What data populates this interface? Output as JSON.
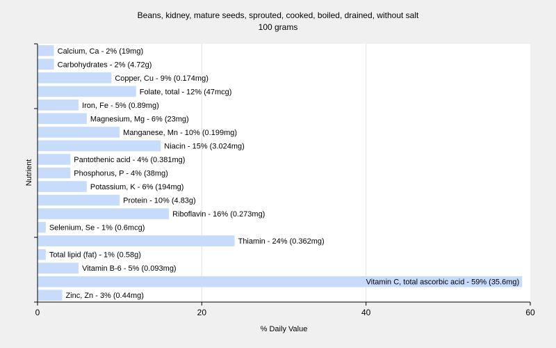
{
  "chart_data": {
    "type": "bar",
    "orientation": "horizontal",
    "title": "Beans, kidney, mature seeds, sprouted, cooked, boiled, drained, without salt",
    "subtitle": "100 grams",
    "xlabel": "% Daily Value",
    "ylabel": "Nutrient",
    "xlim": [
      0,
      60
    ],
    "xticks": [
      "0",
      "20",
      "40",
      "60"
    ],
    "grid": true,
    "bar_color": "#c6dcfa",
    "plot_background": "#ffffff",
    "background": "#f0f0f0",
    "categories": [
      "Calcium, Ca",
      "Carbohydrates",
      "Copper, Cu",
      "Folate, total",
      "Iron, Fe",
      "Magnesium, Mg",
      "Manganese, Mn",
      "Niacin",
      "Pantothenic acid",
      "Phosphorus, P",
      "Potassium, K",
      "Protein",
      "Riboflavin",
      "Selenium, Se",
      "Thiamin",
      "Total lipid (fat)",
      "Vitamin B-6",
      "Vitamin C, total ascorbic acid",
      "Zinc, Zn"
    ],
    "values": [
      2,
      2,
      9,
      12,
      5,
      6,
      10,
      15,
      4,
      4,
      6,
      10,
      16,
      1,
      24,
      1,
      5,
      59,
      3
    ],
    "labels": [
      "Calcium, Ca - 2% (19mg)",
      "Carbohydrates - 2% (4.72g)",
      "Copper, Cu - 9% (0.174mg)",
      "Folate, total - 12% (47mcg)",
      "Iron, Fe - 5% (0.89mg)",
      "Magnesium, Mg - 6% (23mg)",
      "Manganese, Mn - 10% (0.199mg)",
      "Niacin - 15% (3.024mg)",
      "Pantothenic acid - 4% (0.381mg)",
      "Phosphorus, P - 4% (38mg)",
      "Potassium, K - 6% (194mg)",
      "Protein - 10% (4.83g)",
      "Riboflavin - 16% (0.273mg)",
      "Selenium, Se - 1% (0.6mcg)",
      "Thiamin - 24% (0.362mg)",
      "Total lipid (fat) - 1% (0.58g)",
      "Vitamin B-6 - 5% (0.093mg)",
      "Vitamin C, total ascorbic acid - 59% (35.6mg)",
      "Zinc, Zn - 3% (0.44mg)"
    ]
  }
}
